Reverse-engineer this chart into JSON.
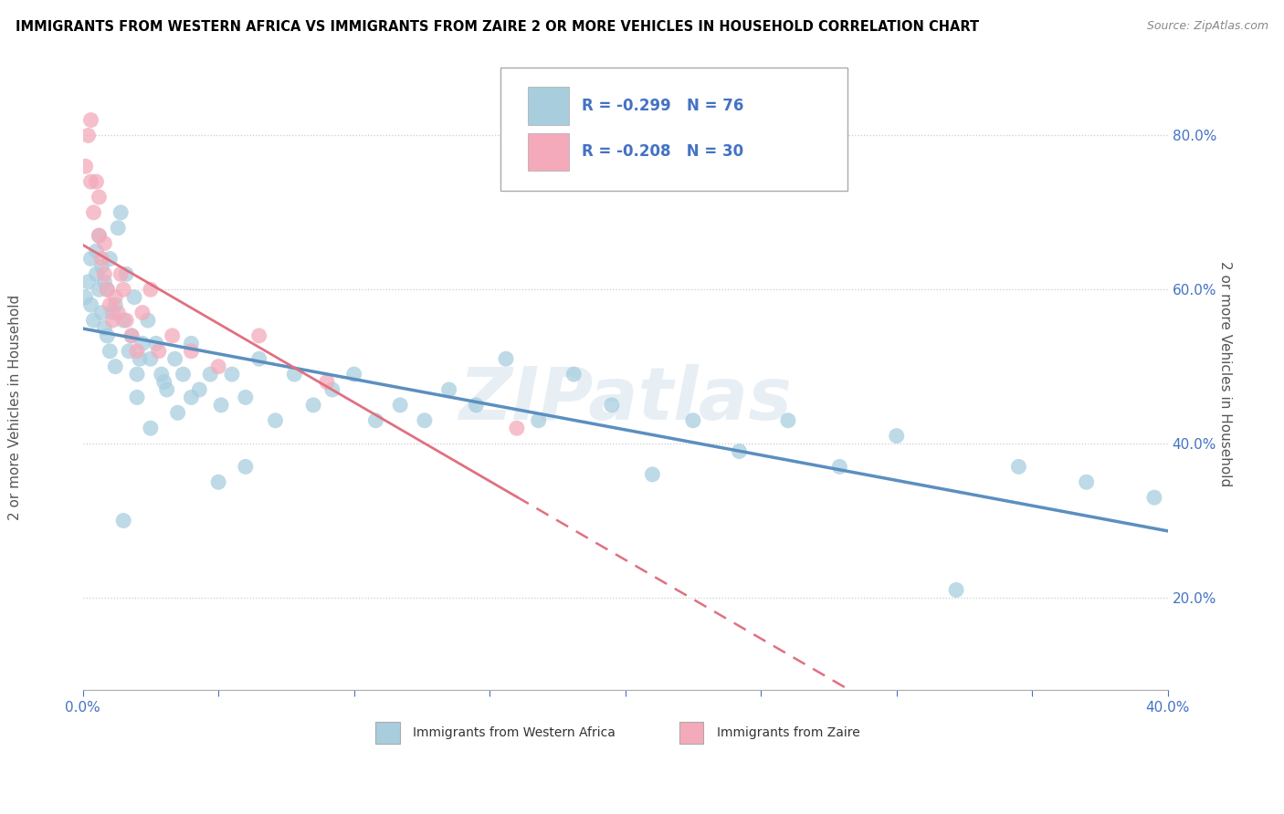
{
  "title": "IMMIGRANTS FROM WESTERN AFRICA VS IMMIGRANTS FROM ZAIRE 2 OR MORE VEHICLES IN HOUSEHOLD CORRELATION CHART",
  "source": "Source: ZipAtlas.com",
  "ylabel_label": "2 or more Vehicles in Household",
  "legend_labels": [
    "Immigrants from Western Africa",
    "Immigrants from Zaire"
  ],
  "R1": -0.299,
  "N1": 76,
  "R2": -0.208,
  "N2": 30,
  "color_blue": "#A8CEDE",
  "color_pink": "#F4AABB",
  "color_blue_line": "#5B8FBF",
  "color_pink_line": "#E07080",
  "color_text_blue": "#4472C4",
  "watermark": "ZIPatlas",
  "xlim": [
    0.0,
    0.4
  ],
  "ylim": [
    0.08,
    0.9
  ],
  "yticks": [
    0.2,
    0.4,
    0.6,
    0.8
  ],
  "xticks": [
    0.0,
    0.05,
    0.1,
    0.15,
    0.2,
    0.25,
    0.3,
    0.35,
    0.4
  ],
  "blue_x": [
    0.001,
    0.002,
    0.003,
    0.003,
    0.004,
    0.005,
    0.005,
    0.006,
    0.006,
    0.007,
    0.007,
    0.008,
    0.008,
    0.009,
    0.009,
    0.01,
    0.01,
    0.011,
    0.012,
    0.012,
    0.013,
    0.014,
    0.015,
    0.016,
    0.017,
    0.018,
    0.019,
    0.02,
    0.021,
    0.022,
    0.024,
    0.025,
    0.027,
    0.029,
    0.031,
    0.034,
    0.037,
    0.04,
    0.043,
    0.047,
    0.051,
    0.055,
    0.06,
    0.065,
    0.071,
    0.078,
    0.085,
    0.092,
    0.1,
    0.108,
    0.117,
    0.126,
    0.135,
    0.145,
    0.156,
    0.168,
    0.181,
    0.195,
    0.21,
    0.225,
    0.242,
    0.26,
    0.279,
    0.3,
    0.322,
    0.345,
    0.37,
    0.395,
    0.015,
    0.02,
    0.025,
    0.03,
    0.035,
    0.04,
    0.05,
    0.06
  ],
  "blue_y": [
    0.59,
    0.61,
    0.58,
    0.64,
    0.56,
    0.62,
    0.65,
    0.6,
    0.67,
    0.57,
    0.63,
    0.55,
    0.61,
    0.54,
    0.6,
    0.52,
    0.64,
    0.57,
    0.5,
    0.58,
    0.68,
    0.7,
    0.56,
    0.62,
    0.52,
    0.54,
    0.59,
    0.49,
    0.51,
    0.53,
    0.56,
    0.51,
    0.53,
    0.49,
    0.47,
    0.51,
    0.49,
    0.53,
    0.47,
    0.49,
    0.45,
    0.49,
    0.46,
    0.51,
    0.43,
    0.49,
    0.45,
    0.47,
    0.49,
    0.43,
    0.45,
    0.43,
    0.47,
    0.45,
    0.51,
    0.43,
    0.49,
    0.45,
    0.36,
    0.43,
    0.39,
    0.43,
    0.37,
    0.41,
    0.21,
    0.37,
    0.35,
    0.33,
    0.3,
    0.46,
    0.42,
    0.48,
    0.44,
    0.46,
    0.35,
    0.37
  ],
  "pink_x": [
    0.001,
    0.002,
    0.003,
    0.003,
    0.004,
    0.005,
    0.006,
    0.006,
    0.007,
    0.008,
    0.008,
    0.009,
    0.01,
    0.011,
    0.012,
    0.013,
    0.014,
    0.015,
    0.016,
    0.018,
    0.02,
    0.022,
    0.025,
    0.028,
    0.033,
    0.04,
    0.05,
    0.065,
    0.09,
    0.16
  ],
  "pink_y": [
    0.76,
    0.8,
    0.74,
    0.82,
    0.7,
    0.74,
    0.67,
    0.72,
    0.64,
    0.62,
    0.66,
    0.6,
    0.58,
    0.56,
    0.59,
    0.57,
    0.62,
    0.6,
    0.56,
    0.54,
    0.52,
    0.57,
    0.6,
    0.52,
    0.54,
    0.52,
    0.5,
    0.54,
    0.48,
    0.42
  ]
}
